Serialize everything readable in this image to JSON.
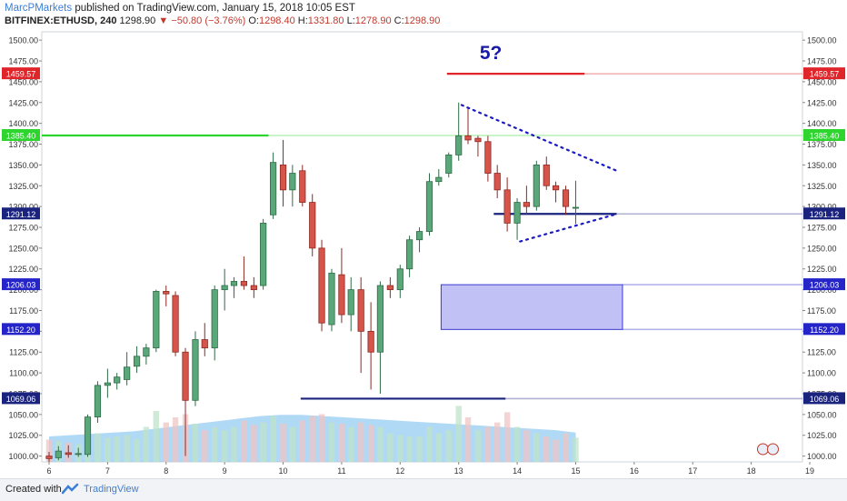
{
  "header": {
    "author": "MarcPMarkets",
    "published": "published on TradingView.com, January 15, 2018 10:05 EST",
    "symbol": "BITFINEX:ETHUSD, 240",
    "last": "1298.90",
    "arrow": "▼",
    "change": "−50.80 (−3.76%)",
    "o_label": "O:",
    "o_value": "1298.40",
    "h_label": "H:",
    "h_value": "1331.80",
    "l_label": "L:",
    "l_value": "1278.90",
    "c_label": "C:",
    "c_value": "1298.90"
  },
  "footer": {
    "created_with": "Created with",
    "brand": "TradingView"
  },
  "chart_data": {
    "type": "candlestick",
    "ylim": [
      993,
      1510
    ],
    "xlim": [
      6,
      19
    ],
    "y_ticks": [
      1000,
      1025,
      1050,
      1075,
      1100,
      1125,
      1150,
      1175,
      1200,
      1225,
      1250,
      1275,
      1300,
      1325,
      1350,
      1375,
      1400,
      1425,
      1450,
      1475,
      1500
    ],
    "x_ticks": [
      "6",
      "7",
      "8",
      "9",
      "10",
      "11",
      "12",
      "13",
      "14",
      "15",
      "16",
      "17",
      "18",
      "19"
    ],
    "x_tick_values": [
      6,
      7,
      8,
      9,
      10,
      11,
      12,
      13,
      14,
      15,
      16,
      17,
      18,
      19
    ],
    "candles": [
      {
        "t": 6.0,
        "o": 1000,
        "h": 1005,
        "l": 993,
        "c": 997
      },
      {
        "t": 6.16,
        "o": 998,
        "h": 1012,
        "l": 995,
        "c": 1006
      },
      {
        "t": 6.33,
        "o": 1004,
        "h": 1013,
        "l": 998,
        "c": 1002
      },
      {
        "t": 6.5,
        "o": 1002,
        "h": 1010,
        "l": 999,
        "c": 1003
      },
      {
        "t": 6.66,
        "o": 1002,
        "h": 1050,
        "l": 999,
        "c": 1047
      },
      {
        "t": 6.83,
        "o": 1047,
        "h": 1090,
        "l": 1040,
        "c": 1085
      },
      {
        "t": 7.0,
        "o": 1085,
        "h": 1105,
        "l": 1070,
        "c": 1088
      },
      {
        "t": 7.16,
        "o": 1088,
        "h": 1100,
        "l": 1080,
        "c": 1095
      },
      {
        "t": 7.33,
        "o": 1092,
        "h": 1125,
        "l": 1085,
        "c": 1107
      },
      {
        "t": 7.5,
        "o": 1108,
        "h": 1132,
        "l": 1100,
        "c": 1120
      },
      {
        "t": 7.66,
        "o": 1120,
        "h": 1135,
        "l": 1110,
        "c": 1130
      },
      {
        "t": 7.83,
        "o": 1130,
        "h": 1200,
        "l": 1125,
        "c": 1198
      },
      {
        "t": 8.0,
        "o": 1198,
        "h": 1205,
        "l": 1180,
        "c": 1195
      },
      {
        "t": 8.16,
        "o": 1193,
        "h": 1198,
        "l": 1120,
        "c": 1125
      },
      {
        "t": 8.33,
        "o": 1125,
        "h": 1130,
        "l": 1000,
        "c": 1067
      },
      {
        "t": 8.5,
        "o": 1067,
        "h": 1150,
        "l": 1060,
        "c": 1140
      },
      {
        "t": 8.66,
        "o": 1140,
        "h": 1160,
        "l": 1120,
        "c": 1130
      },
      {
        "t": 8.83,
        "o": 1130,
        "h": 1205,
        "l": 1115,
        "c": 1200
      },
      {
        "t": 9.0,
        "o": 1200,
        "h": 1225,
        "l": 1175,
        "c": 1205
      },
      {
        "t": 9.16,
        "o": 1205,
        "h": 1215,
        "l": 1190,
        "c": 1210
      },
      {
        "t": 9.33,
        "o": 1210,
        "h": 1240,
        "l": 1200,
        "c": 1205
      },
      {
        "t": 9.5,
        "o": 1205,
        "h": 1215,
        "l": 1190,
        "c": 1200
      },
      {
        "t": 9.66,
        "o": 1205,
        "h": 1285,
        "l": 1200,
        "c": 1280
      },
      {
        "t": 9.83,
        "o": 1290,
        "h": 1365,
        "l": 1285,
        "c": 1353
      },
      {
        "t": 10.0,
        "o": 1350,
        "h": 1380,
        "l": 1300,
        "c": 1320
      },
      {
        "t": 10.16,
        "o": 1320,
        "h": 1350,
        "l": 1300,
        "c": 1340
      },
      {
        "t": 10.33,
        "o": 1343,
        "h": 1350,
        "l": 1300,
        "c": 1305
      },
      {
        "t": 10.5,
        "o": 1305,
        "h": 1315,
        "l": 1240,
        "c": 1250
      },
      {
        "t": 10.66,
        "o": 1250,
        "h": 1260,
        "l": 1150,
        "c": 1160
      },
      {
        "t": 10.83,
        "o": 1158,
        "h": 1225,
        "l": 1150,
        "c": 1220
      },
      {
        "t": 11.0,
        "o": 1218,
        "h": 1250,
        "l": 1160,
        "c": 1170
      },
      {
        "t": 11.16,
        "o": 1170,
        "h": 1215,
        "l": 1150,
        "c": 1200
      },
      {
        "t": 11.33,
        "o": 1200,
        "h": 1215,
        "l": 1100,
        "c": 1150
      },
      {
        "t": 11.5,
        "o": 1150,
        "h": 1185,
        "l": 1080,
        "c": 1125
      },
      {
        "t": 11.66,
        "o": 1125,
        "h": 1210,
        "l": 1075,
        "c": 1205
      },
      {
        "t": 11.83,
        "o": 1205,
        "h": 1215,
        "l": 1190,
        "c": 1200
      },
      {
        "t": 12.0,
        "o": 1200,
        "h": 1230,
        "l": 1190,
        "c": 1225
      },
      {
        "t": 12.16,
        "o": 1225,
        "h": 1265,
        "l": 1215,
        "c": 1260
      },
      {
        "t": 12.33,
        "o": 1260,
        "h": 1275,
        "l": 1245,
        "c": 1270
      },
      {
        "t": 12.5,
        "o": 1270,
        "h": 1340,
        "l": 1265,
        "c": 1330
      },
      {
        "t": 12.66,
        "o": 1330,
        "h": 1345,
        "l": 1325,
        "c": 1335
      },
      {
        "t": 12.83,
        "o": 1340,
        "h": 1365,
        "l": 1335,
        "c": 1362
      },
      {
        "t": 13.0,
        "o": 1362,
        "h": 1425,
        "l": 1355,
        "c": 1385
      },
      {
        "t": 13.16,
        "o": 1385,
        "h": 1420,
        "l": 1375,
        "c": 1380
      },
      {
        "t": 13.33,
        "o": 1382,
        "h": 1385,
        "l": 1360,
        "c": 1378
      },
      {
        "t": 13.5,
        "o": 1378,
        "h": 1385,
        "l": 1330,
        "c": 1340
      },
      {
        "t": 13.66,
        "o": 1340,
        "h": 1350,
        "l": 1310,
        "c": 1320
      },
      {
        "t": 13.83,
        "o": 1320,
        "h": 1335,
        "l": 1270,
        "c": 1280
      },
      {
        "t": 14.0,
        "o": 1280,
        "h": 1310,
        "l": 1260,
        "c": 1305
      },
      {
        "t": 14.16,
        "o": 1305,
        "h": 1325,
        "l": 1290,
        "c": 1300
      },
      {
        "t": 14.33,
        "o": 1300,
        "h": 1355,
        "l": 1295,
        "c": 1350
      },
      {
        "t": 14.5,
        "o": 1350,
        "h": 1360,
        "l": 1320,
        "c": 1325
      },
      {
        "t": 14.66,
        "o": 1325,
        "h": 1330,
        "l": 1305,
        "c": 1320
      },
      {
        "t": 14.83,
        "o": 1320,
        "h": 1325,
        "l": 1290,
        "c": 1300
      },
      {
        "t": 15.0,
        "o": 1298,
        "h": 1331,
        "l": 1279,
        "c": 1299
      }
    ],
    "volume": [
      {
        "t": 6.0,
        "v": 0.35,
        "up": false
      },
      {
        "t": 6.16,
        "v": 0.33,
        "up": true
      },
      {
        "t": 6.33,
        "v": 0.3,
        "up": false
      },
      {
        "t": 6.5,
        "v": 0.28,
        "up": true
      },
      {
        "t": 6.66,
        "v": 0.4,
        "up": true
      },
      {
        "t": 6.83,
        "v": 0.45,
        "up": true
      },
      {
        "t": 7.0,
        "v": 0.38,
        "up": true
      },
      {
        "t": 7.16,
        "v": 0.4,
        "up": true
      },
      {
        "t": 7.33,
        "v": 0.42,
        "up": true
      },
      {
        "t": 7.5,
        "v": 0.36,
        "up": true
      },
      {
        "t": 7.66,
        "v": 0.55,
        "up": true
      },
      {
        "t": 7.83,
        "v": 0.8,
        "up": true
      },
      {
        "t": 8.0,
        "v": 0.62,
        "up": false
      },
      {
        "t": 8.16,
        "v": 0.7,
        "up": false
      },
      {
        "t": 8.33,
        "v": 0.75,
        "up": false
      },
      {
        "t": 8.5,
        "v": 0.6,
        "up": true
      },
      {
        "t": 8.66,
        "v": 0.5,
        "up": false
      },
      {
        "t": 8.83,
        "v": 0.55,
        "up": true
      },
      {
        "t": 9.0,
        "v": 0.5,
        "up": true
      },
      {
        "t": 9.16,
        "v": 0.55,
        "up": true
      },
      {
        "t": 9.33,
        "v": 0.65,
        "up": false
      },
      {
        "t": 9.5,
        "v": 0.58,
        "up": false
      },
      {
        "t": 9.66,
        "v": 0.62,
        "up": true
      },
      {
        "t": 9.83,
        "v": 0.72,
        "up": true
      },
      {
        "t": 10.0,
        "v": 0.6,
        "up": false
      },
      {
        "t": 10.16,
        "v": 0.55,
        "up": true
      },
      {
        "t": 10.33,
        "v": 0.65,
        "up": false
      },
      {
        "t": 10.5,
        "v": 0.72,
        "up": false
      },
      {
        "t": 10.66,
        "v": 0.75,
        "up": false
      },
      {
        "t": 10.83,
        "v": 0.62,
        "up": true
      },
      {
        "t": 11.0,
        "v": 0.6,
        "up": false
      },
      {
        "t": 11.16,
        "v": 0.55,
        "up": true
      },
      {
        "t": 11.33,
        "v": 0.62,
        "up": false
      },
      {
        "t": 11.5,
        "v": 0.58,
        "up": false
      },
      {
        "t": 11.66,
        "v": 0.55,
        "up": true
      },
      {
        "t": 11.83,
        "v": 0.45,
        "up": true
      },
      {
        "t": 12.0,
        "v": 0.42,
        "up": true
      },
      {
        "t": 12.16,
        "v": 0.4,
        "up": true
      },
      {
        "t": 12.33,
        "v": 0.4,
        "up": true
      },
      {
        "t": 12.5,
        "v": 0.55,
        "up": true
      },
      {
        "t": 12.66,
        "v": 0.45,
        "up": true
      },
      {
        "t": 12.83,
        "v": 0.5,
        "up": true
      },
      {
        "t": 13.0,
        "v": 0.88,
        "up": true
      },
      {
        "t": 13.16,
        "v": 0.7,
        "up": false
      },
      {
        "t": 13.33,
        "v": 0.5,
        "up": true
      },
      {
        "t": 13.5,
        "v": 0.55,
        "up": false
      },
      {
        "t": 13.66,
        "v": 0.62,
        "up": false
      },
      {
        "t": 13.83,
        "v": 0.78,
        "up": false
      },
      {
        "t": 14.0,
        "v": 0.55,
        "up": true
      },
      {
        "t": 14.16,
        "v": 0.5,
        "up": false
      },
      {
        "t": 14.33,
        "v": 0.45,
        "up": true
      },
      {
        "t": 14.5,
        "v": 0.4,
        "up": false
      },
      {
        "t": 14.66,
        "v": 0.35,
        "up": false
      },
      {
        "t": 14.83,
        "v": 0.45,
        "up": false
      },
      {
        "t": 15.0,
        "v": 0.38,
        "up": true
      }
    ],
    "volume_ma": [
      0.4,
      0.42,
      0.44,
      0.46,
      0.48,
      0.52,
      0.56,
      0.6,
      0.64,
      0.68,
      0.72,
      0.74,
      0.74,
      0.72,
      0.7,
      0.68,
      0.66,
      0.64,
      0.62,
      0.6,
      0.58,
      0.56,
      0.54,
      0.52,
      0.5,
      0.46
    ],
    "levels": [
      {
        "label": "1459.57",
        "value": 1459.57,
        "color": "#e0252a",
        "solid_from": 12.8,
        "solid_to": 15.15
      },
      {
        "label": "1385.40",
        "value": 1385.4,
        "color": "#2fd52f",
        "solid_from": 6.0,
        "solid_to": 9.75
      },
      {
        "label": "1291.12",
        "value": 1291.12,
        "color": "#1a237e",
        "solid_from": 13.6,
        "solid_to": 15.7
      },
      {
        "label": "1206.03",
        "value": 1206.03,
        "color": "#2424c8",
        "solid_from": 15.8,
        "solid_to": 15.8
      },
      {
        "label": "1152.20",
        "value": 1152.2,
        "color": "#2424c8",
        "solid_from": 15.8,
        "solid_to": 15.8
      },
      {
        "label": "1069.06",
        "value": 1069.06,
        "color": "#1a237e",
        "solid_from": 10.3,
        "solid_to": 13.8
      }
    ],
    "zone": {
      "x0": 12.7,
      "x1": 15.8,
      "y0": 1152.2,
      "y1": 1206.03,
      "color": "#b6b6f5"
    },
    "triangle": {
      "upper": [
        [
          13.05,
          1422
        ],
        [
          15.7,
          1343
        ]
      ],
      "lower": [
        [
          14.05,
          1258
        ],
        [
          15.65,
          1290
        ]
      ]
    },
    "annotation": {
      "text": "5?",
      "x": 13.55,
      "y": 1477
    }
  }
}
